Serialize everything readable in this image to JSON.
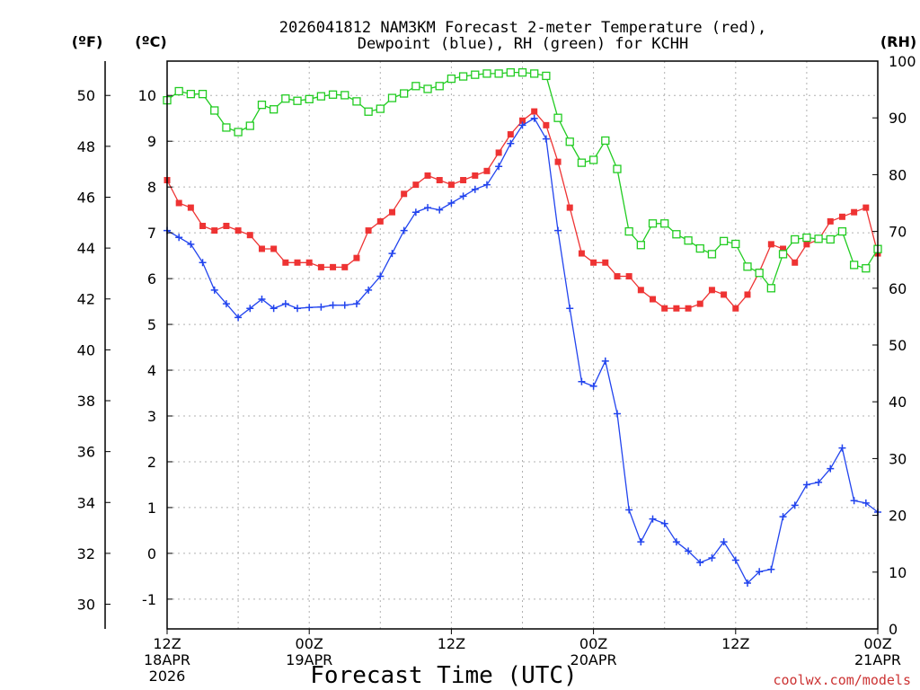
{
  "chart_data": {
    "type": "line",
    "title_line1": "2026041812 NAM3KM Forecast 2-meter Temperature (red),",
    "title_line2": "Dewpoint (blue), RH (green) for KCHH",
    "xlabel": "Forecast Time (UTC)",
    "credit": "coolwx.com/models",
    "unit_f": "(ºF)",
    "unit_c": "(ºC)",
    "unit_rh": "(RH)",
    "x_range_hours": [
      0,
      60
    ],
    "ylim_c": [
      -1.65,
      10.75
    ],
    "ylim_rh": [
      0,
      100
    ],
    "x_ticks": [
      {
        "hour": 0,
        "lines": [
          "12Z",
          "18APR",
          "2026"
        ]
      },
      {
        "hour": 12,
        "lines": [
          "00Z",
          "19APR"
        ]
      },
      {
        "hour": 24,
        "lines": [
          "12Z"
        ]
      },
      {
        "hour": 36,
        "lines": [
          "00Z",
          "20APR"
        ]
      },
      {
        "hour": 48,
        "lines": [
          "12Z"
        ]
      },
      {
        "hour": 60,
        "lines": [
          "00Z",
          "21APR"
        ]
      }
    ],
    "c_ticks": [
      "-1",
      "0",
      "1",
      "2",
      "3",
      "4",
      "5",
      "6",
      "7",
      "8",
      "9",
      "10"
    ],
    "f_ticks": [
      "30",
      "32",
      "34",
      "36",
      "38",
      "40",
      "42",
      "44",
      "46",
      "48",
      "50"
    ],
    "rh_ticks": [
      "0",
      "10",
      "20",
      "30",
      "40",
      "50",
      "60",
      "70",
      "80",
      "90",
      "100"
    ],
    "series": [
      {
        "name": "2-meter Temperature",
        "units": "°C",
        "color": "#ee3333",
        "marker": "filled-square",
        "values": [
          8.15,
          7.65,
          7.55,
          7.15,
          7.05,
          7.15,
          7.05,
          6.95,
          6.65,
          6.65,
          6.35,
          6.35,
          6.35,
          6.25,
          6.25,
          6.25,
          6.45,
          7.05,
          7.25,
          7.45,
          7.85,
          8.05,
          8.25,
          8.15,
          8.05,
          8.15,
          8.25,
          8.35,
          8.75,
          9.15,
          9.45,
          9.65,
          9.35,
          8.55,
          7.55,
          6.55,
          6.35,
          6.35,
          6.05,
          6.05,
          5.75,
          5.55,
          5.35,
          5.35,
          5.35,
          5.45,
          5.75,
          5.65,
          5.35,
          5.65,
          6.15,
          6.75,
          6.65,
          6.35,
          6.75,
          6.85,
          7.25,
          7.35,
          7.45,
          7.55,
          6.55
        ]
      },
      {
        "name": "Dewpoint",
        "units": "°C",
        "color": "#2244ee",
        "marker": "plus",
        "values": [
          7.05,
          6.9,
          6.75,
          6.35,
          5.75,
          5.45,
          5.15,
          5.35,
          5.55,
          5.35,
          5.45,
          5.35,
          5.37,
          5.38,
          5.42,
          5.42,
          5.45,
          5.75,
          6.05,
          6.55,
          7.05,
          7.45,
          7.55,
          7.5,
          7.65,
          7.8,
          7.95,
          8.05,
          8.45,
          8.95,
          9.35,
          9.5,
          9.05,
          7.05,
          5.35,
          3.75,
          3.65,
          4.2,
          3.05,
          0.95,
          0.25,
          0.75,
          0.65,
          0.25,
          0.05,
          -0.2,
          -0.1,
          0.25,
          -0.15,
          -0.65,
          -0.4,
          -0.35,
          0.8,
          1.05,
          1.5,
          1.55,
          1.85,
          2.3,
          1.15,
          1.1,
          0.9
        ]
      },
      {
        "name": "RH",
        "units": "%",
        "color": "#22cc22",
        "marker": "open-square",
        "values": [
          93.1,
          94.7,
          94.2,
          94.2,
          91.3,
          88.3,
          87.5,
          88.6,
          92.3,
          91.5,
          93.4,
          93.0,
          93.3,
          93.8,
          94.1,
          94.0,
          92.9,
          91.1,
          91.6,
          93.5,
          94.3,
          95.6,
          95.1,
          95.6,
          96.9,
          97.3,
          97.6,
          97.8,
          97.8,
          98.0,
          98.0,
          97.8,
          97.4,
          90.0,
          85.8,
          82.1,
          82.6,
          86.0,
          81.0,
          70.0,
          67.6,
          71.4,
          71.4,
          69.5,
          68.4,
          67.0,
          66.0,
          68.3,
          67.8,
          63.8,
          62.7,
          60.0,
          66.0,
          68.6,
          68.9,
          68.7,
          68.6,
          70.0,
          64.1,
          63.5,
          66.9
        ]
      }
    ]
  }
}
